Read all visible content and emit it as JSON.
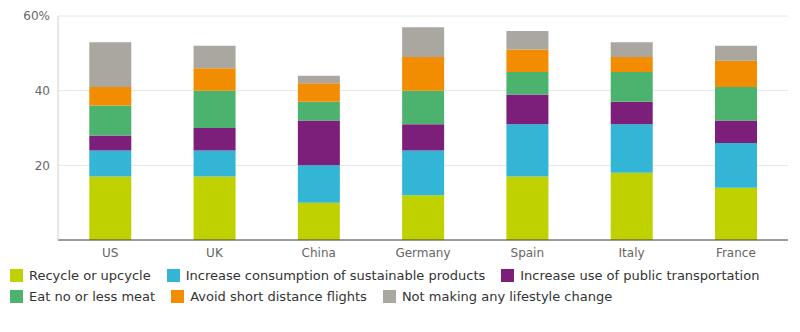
{
  "chart_data": {
    "type": "bar",
    "stacked": true,
    "grid": true,
    "legend": "bottom",
    "categories": [
      "US",
      "UK",
      "China",
      "Germany",
      "Spain",
      "Italy",
      "France"
    ],
    "ylim": [
      0,
      60
    ],
    "yticks": [
      20,
      40,
      {
        "value": 60,
        "label": "60%"
      }
    ],
    "series": [
      {
        "name": "Recycle or upcycle",
        "color": "#bfd200",
        "values": [
          17,
          17,
          10,
          12,
          17,
          18,
          14
        ]
      },
      {
        "name": "Increase consumption of sustainable products",
        "color": "#33b5d6",
        "values": [
          7,
          7,
          10,
          12,
          14,
          13,
          12
        ]
      },
      {
        "name": "Increase use of public transportation",
        "color": "#7b1f7a",
        "values": [
          4,
          6,
          12,
          7,
          8,
          6,
          6
        ]
      },
      {
        "name": "Eat no or less meat",
        "color": "#4cb36e",
        "values": [
          8,
          10,
          5,
          9,
          6,
          8,
          9
        ]
      },
      {
        "name": "Avoid short distance flights",
        "color": "#f28c00",
        "values": [
          5,
          6,
          5,
          9,
          6,
          4,
          7
        ]
      },
      {
        "name": "Not making any lifestyle change",
        "color": "#aaa6a0",
        "values": [
          12,
          6,
          2,
          8,
          5,
          4,
          4
        ]
      }
    ]
  }
}
